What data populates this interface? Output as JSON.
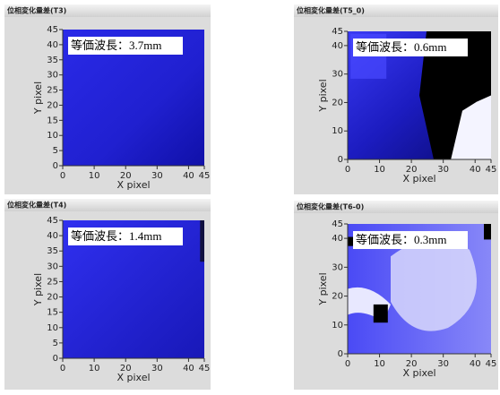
{
  "chart_data": [
    {
      "type": "heatmap",
      "title": "位相変化量差(T3)",
      "annotation": "等価波長：3.7mm",
      "xlabel": "X pixel",
      "ylabel": "Y pixel",
      "xlim": [
        0,
        45
      ],
      "ylim": [
        0,
        45
      ],
      "xticks": [
        0,
        10,
        20,
        30,
        40,
        45
      ],
      "yticks": [
        0,
        5,
        10,
        15,
        20,
        25,
        30,
        35,
        40,
        45
      ]
    },
    {
      "type": "heatmap",
      "title": "位相変化量差(T5_0)",
      "annotation": "等価波長：0.6mm",
      "xlabel": "X pixel",
      "ylabel": "Y pixel",
      "xlim": [
        0,
        45
      ],
      "ylim": [
        0,
        45
      ],
      "xticks": [
        0,
        10,
        20,
        30,
        40,
        45
      ],
      "yticks": [
        0,
        10,
        20,
        30,
        40,
        45
      ]
    },
    {
      "type": "heatmap",
      "title": "位相変化量差(T4)",
      "annotation": "等価波長：1.4mm",
      "xlabel": "X pixel",
      "ylabel": "Y pixel",
      "xlim": [
        0,
        45
      ],
      "ylim": [
        0,
        45
      ],
      "xticks": [
        0,
        10,
        20,
        30,
        40,
        45
      ],
      "yticks": [
        0,
        5,
        10,
        15,
        20,
        25,
        30,
        35,
        40,
        45
      ]
    },
    {
      "type": "heatmap",
      "title": "位相変化量差(T6-0)",
      "annotation": "等価波長：0.3mm",
      "xlabel": "X pixel",
      "ylabel": "Y pixel",
      "xlim": [
        0,
        45
      ],
      "ylim": [
        0,
        45
      ],
      "xticks": [
        0,
        10,
        20,
        30,
        40,
        45
      ],
      "yticks": [
        0,
        10,
        20,
        30,
        40,
        45
      ]
    }
  ]
}
